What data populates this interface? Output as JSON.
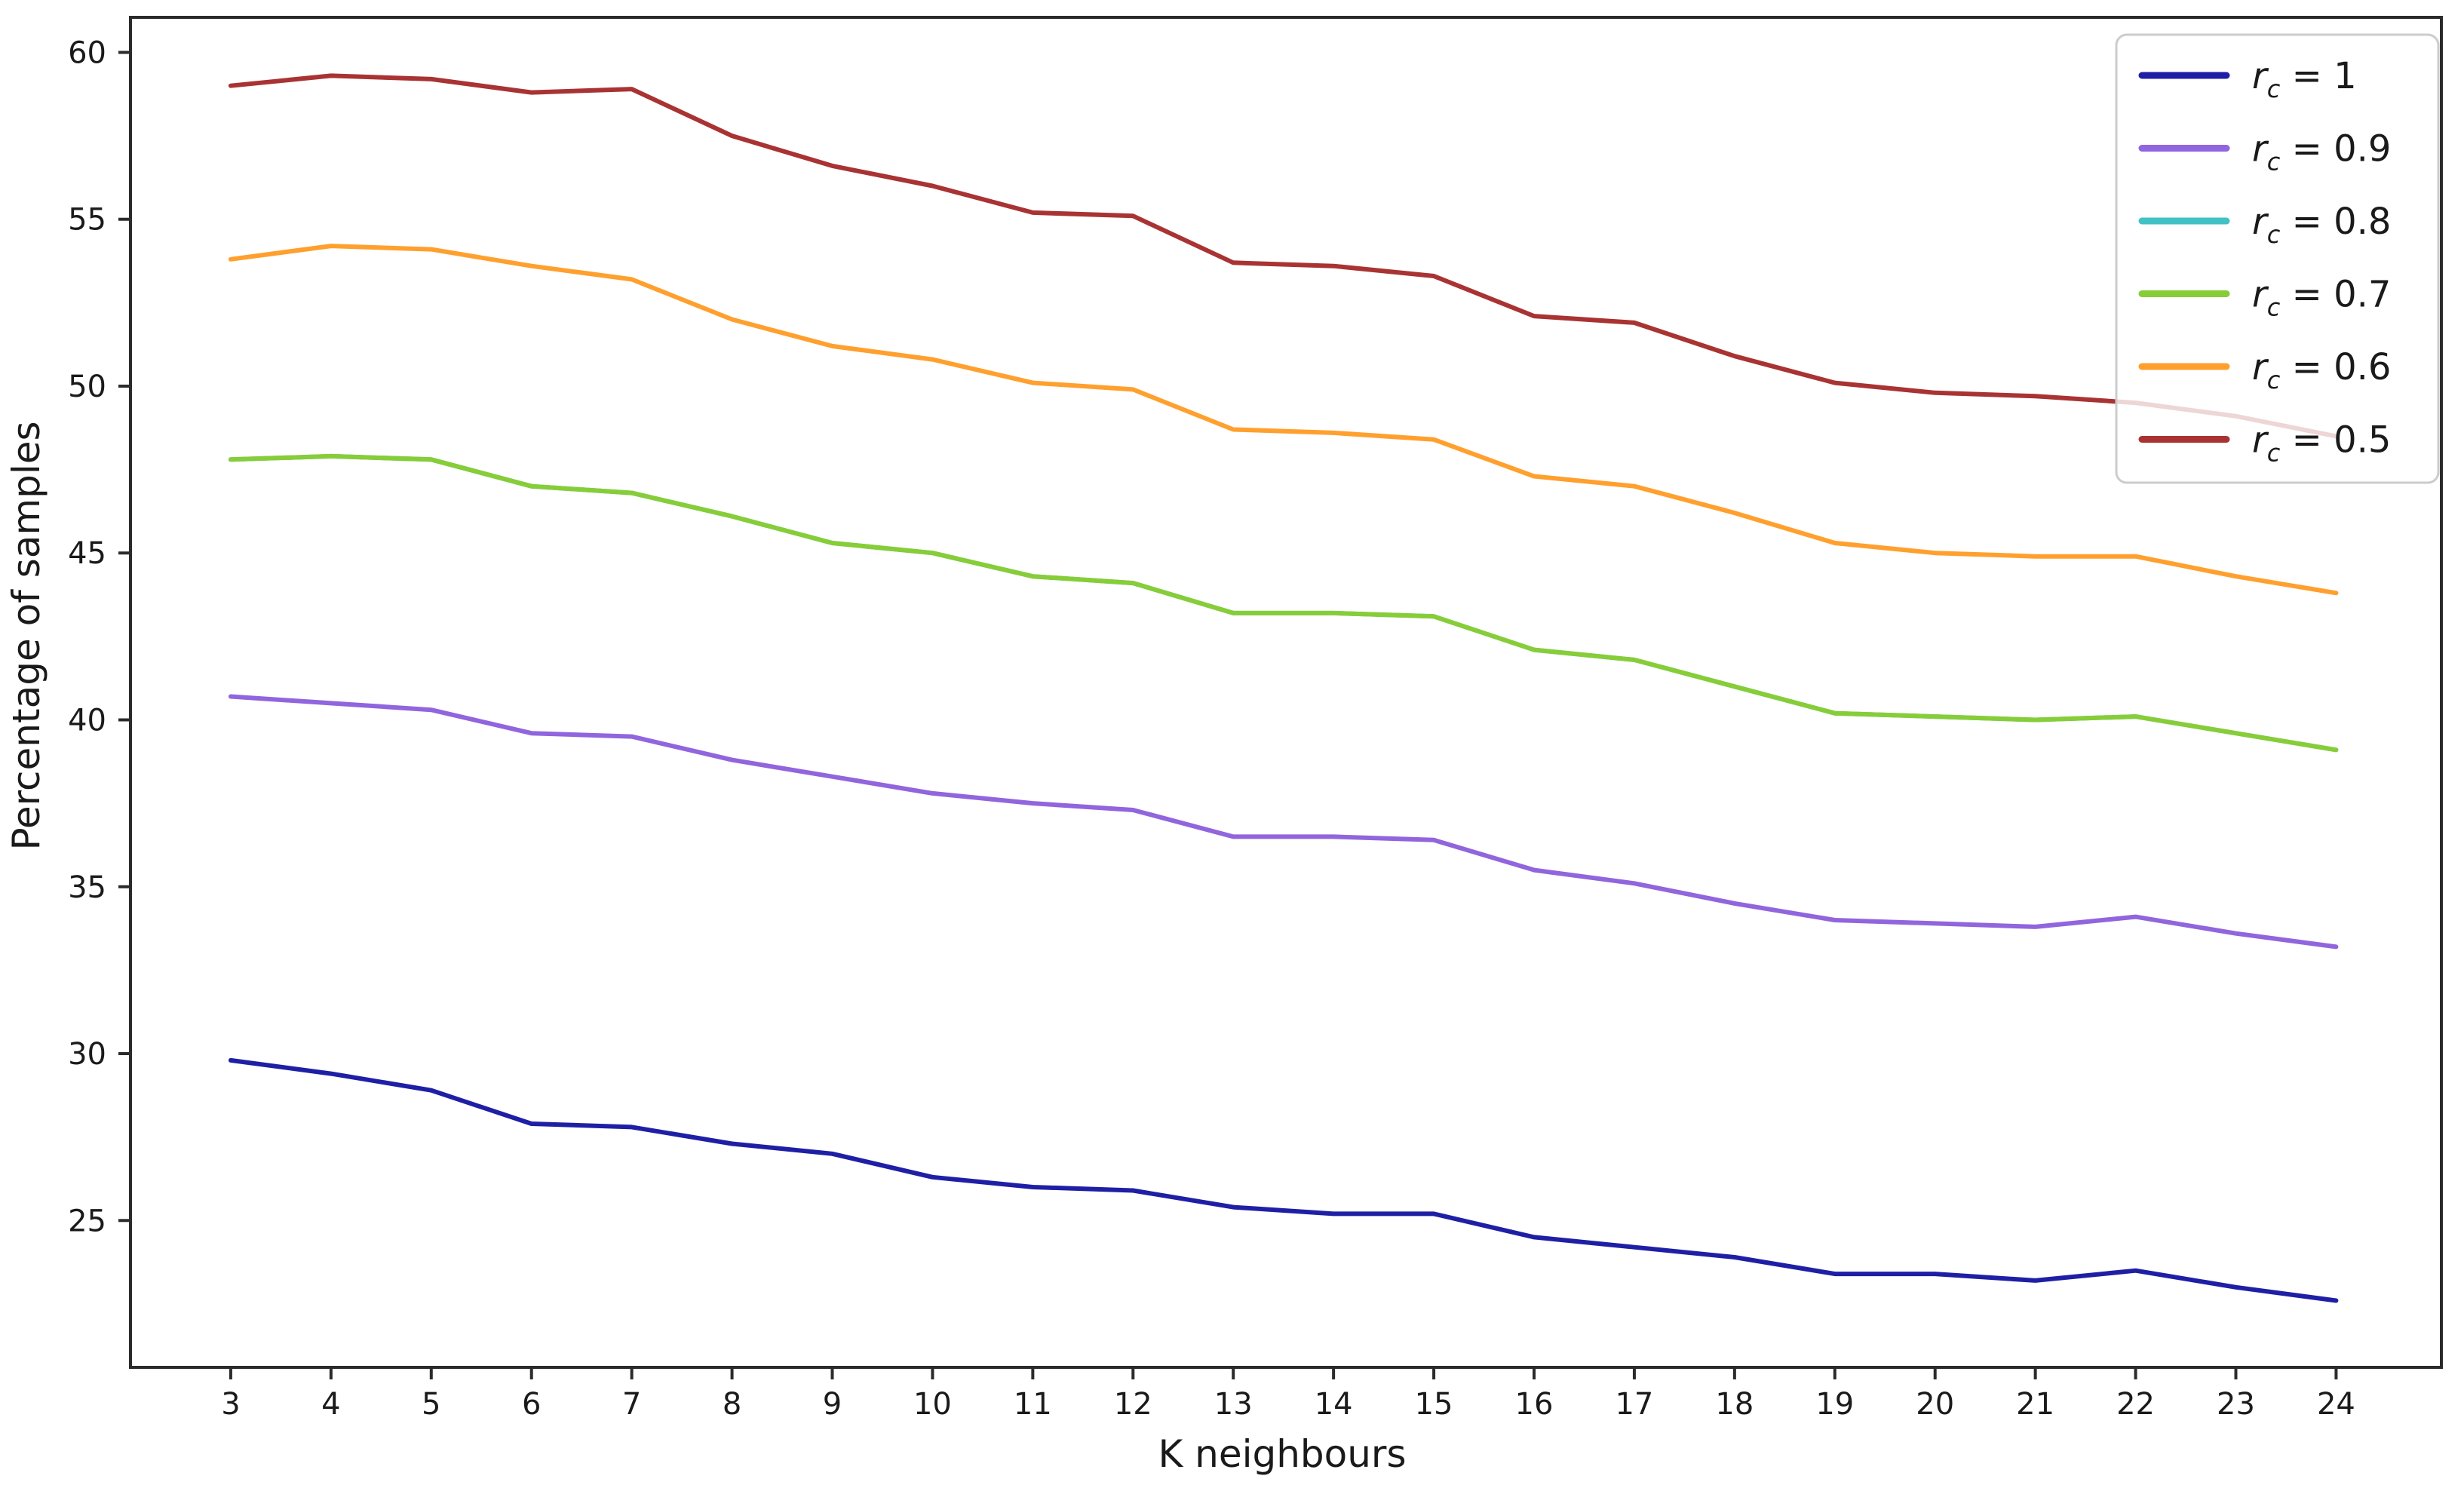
{
  "chart_data": {
    "type": "line",
    "title": "",
    "xlabel": "K neighbours",
    "ylabel": "Percentage of samples",
    "x": [
      3,
      4,
      5,
      6,
      7,
      8,
      9,
      10,
      11,
      12,
      13,
      14,
      15,
      16,
      17,
      18,
      19,
      20,
      21,
      22,
      23,
      24
    ],
    "xticks": [
      3,
      4,
      5,
      6,
      7,
      8,
      9,
      10,
      11,
      12,
      13,
      14,
      15,
      16,
      17,
      18,
      19,
      20,
      21,
      22,
      23,
      24
    ],
    "yticks": [
      25,
      30,
      35,
      40,
      45,
      50,
      55,
      60
    ],
    "xlim": [
      2.0,
      25.05
    ],
    "ylim": [
      20.6,
      61.05
    ],
    "grid": false,
    "legend_position": "upper right",
    "notes": "Only 5 lines are visibly distinct: the r_c = 0.8 line coincides with the r_c = 0.7 line and is hidden beneath it. The r_c = 0.5 line passes behind the semi-transparent legend box at its right end.",
    "series": [
      {
        "name": "rc = 1",
        "legend_value": "1",
        "color": "#1f1fa6",
        "values": [
          29.8,
          29.4,
          28.9,
          27.9,
          27.8,
          27.3,
          27.0,
          26.3,
          26.0,
          25.9,
          25.4,
          25.2,
          25.2,
          24.5,
          24.2,
          23.9,
          23.4,
          23.4,
          23.2,
          23.5,
          23.0,
          22.6
        ]
      },
      {
        "name": "rc = 0.9",
        "legend_value": "0.9",
        "color": "#9165dd",
        "values": [
          40.7,
          40.5,
          40.3,
          39.6,
          39.5,
          38.8,
          38.3,
          37.8,
          37.5,
          37.3,
          36.5,
          36.5,
          36.4,
          35.5,
          35.1,
          34.5,
          34.0,
          33.9,
          33.8,
          34.1,
          33.6,
          33.2
        ]
      },
      {
        "name": "rc = 0.8",
        "legend_value": "0.8",
        "color": "#41c1c5",
        "values": [
          47.8,
          47.9,
          47.8,
          47.0,
          46.8,
          46.1,
          45.3,
          45.0,
          44.3,
          44.1,
          43.2,
          43.2,
          43.1,
          42.1,
          41.8,
          41.0,
          40.2,
          40.1,
          40.0,
          40.1,
          39.6,
          39.1
        ]
      },
      {
        "name": "rc = 0.7",
        "legend_value": "0.7",
        "color": "#87cd37",
        "values": [
          47.8,
          47.9,
          47.8,
          47.0,
          46.8,
          46.1,
          45.3,
          45.0,
          44.3,
          44.1,
          43.2,
          43.2,
          43.1,
          42.1,
          41.8,
          41.0,
          40.2,
          40.1,
          40.0,
          40.1,
          39.6,
          39.1
        ]
      },
      {
        "name": "rc = 0.6",
        "legend_value": "0.6",
        "color": "#ffa02e",
        "values": [
          53.8,
          54.2,
          54.1,
          53.6,
          53.2,
          52.0,
          51.2,
          50.8,
          50.1,
          49.9,
          48.7,
          48.6,
          48.4,
          47.3,
          47.0,
          46.2,
          45.3,
          45.0,
          44.9,
          44.9,
          44.3,
          43.8
        ]
      },
      {
        "name": "rc = 0.5",
        "legend_value": "0.5",
        "color": "#a93333",
        "values": [
          59.0,
          59.3,
          59.2,
          58.8,
          58.9,
          57.5,
          56.6,
          56.0,
          55.2,
          55.1,
          53.7,
          53.6,
          53.3,
          52.1,
          51.9,
          50.9,
          50.1,
          49.8,
          49.7,
          49.5,
          49.1,
          48.5
        ]
      }
    ],
    "legend_var": "r",
    "legend_sub": "c",
    "legend_eq": " = "
  },
  "layout_colors": {
    "spine": "#2b2b2b",
    "tick": "#2b2b2b",
    "text": "#1a1a1a",
    "legend_border": "#cccccc",
    "legend_fill": "rgba(255,255,255,0.8)"
  }
}
